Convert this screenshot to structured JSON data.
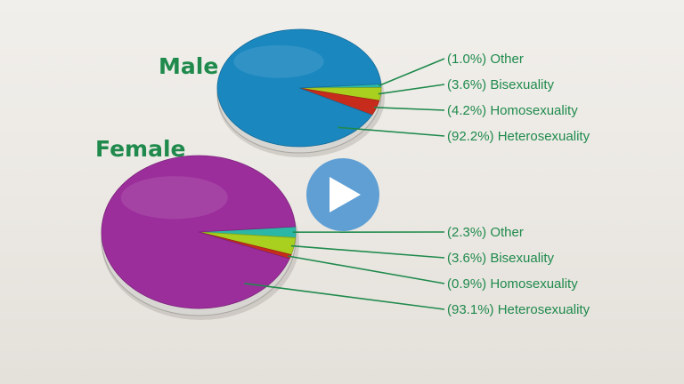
{
  "colors": {
    "label_green": "#1f8a4c",
    "male_heterosexuality": "#1a87bf",
    "female_heterosexuality": "#9b2e9b",
    "bisexuality": "#a9cf1f",
    "homosexuality": "#c62b1c",
    "other": "#2bb7a6",
    "play_button": "#5f9fd4",
    "play_triangle": "#ffffff"
  },
  "play_button": {
    "icon": "play-icon"
  },
  "chart_data": [
    {
      "type": "pie",
      "title": "Male",
      "slices": [
        {
          "label": "Heterosexuality",
          "value": 92.2,
          "text": "(92.2%) Heterosexuality",
          "color": "#1a87bf"
        },
        {
          "label": "Homosexuality",
          "value": 4.2,
          "text": "(4.2%) Homosexuality",
          "color": "#c62b1c"
        },
        {
          "label": "Bisexuality",
          "value": 3.6,
          "text": "(3.6%) Bisexuality",
          "color": "#a9cf1f"
        },
        {
          "label": "Other",
          "value": 1.0,
          "text": "(1.0%) Other",
          "color": "#2bb7a6"
        }
      ]
    },
    {
      "type": "pie",
      "title": "Female",
      "slices": [
        {
          "label": "Heterosexuality",
          "value": 93.1,
          "text": "(93.1%) Heterosexuality",
          "color": "#9b2e9b"
        },
        {
          "label": "Homosexuality",
          "value": 0.9,
          "text": "(0.9%) Homosexuality",
          "color": "#c62b1c"
        },
        {
          "label": "Bisexuality",
          "value": 3.6,
          "text": "(3.6%) Bisexuality",
          "color": "#a9cf1f"
        },
        {
          "label": "Other",
          "value": 2.3,
          "text": "(2.3%) Other",
          "color": "#2bb7a6"
        }
      ]
    }
  ]
}
